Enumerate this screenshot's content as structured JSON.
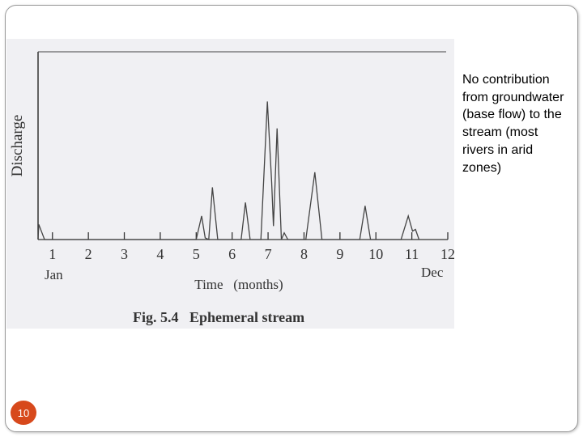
{
  "slide": {
    "side_text": "No contribution from groundwater (base flow) to the stream (most rivers in arid  zones)",
    "page_number": "10"
  },
  "chart_data": {
    "type": "line",
    "title": "Fig. 5.4   Ephemeral stream",
    "xlabel": "Time   (months)",
    "ylabel": "Discharge",
    "x_ticks": [
      "1",
      "2",
      "3",
      "4",
      "5",
      "6",
      "7",
      "8",
      "9",
      "10",
      "11",
      "12"
    ],
    "x_start_label": "Jan",
    "x_end_label": "Dec",
    "xlim": [
      0.6,
      12
    ],
    "ylim": [
      0,
      100
    ],
    "grid": false,
    "series": [
      {
        "values": [
          [
            0.6,
            0
          ],
          [
            0.62,
            9
          ],
          [
            0.78,
            0
          ],
          [
            5.0,
            0
          ],
          [
            5.15,
            14
          ],
          [
            5.25,
            1
          ],
          [
            5.35,
            0
          ],
          [
            5.45,
            31
          ],
          [
            5.6,
            0
          ],
          [
            6.25,
            0
          ],
          [
            6.37,
            22
          ],
          [
            6.5,
            0
          ],
          [
            6.8,
            0
          ],
          [
            6.98,
            82
          ],
          [
            7.1,
            34
          ],
          [
            7.15,
            8
          ],
          [
            7.2,
            36
          ],
          [
            7.25,
            66
          ],
          [
            7.37,
            0
          ],
          [
            7.45,
            4
          ],
          [
            7.55,
            0
          ],
          [
            8.05,
            0
          ],
          [
            8.3,
            40
          ],
          [
            8.5,
            0
          ],
          [
            9.55,
            0
          ],
          [
            9.7,
            20
          ],
          [
            9.85,
            0
          ],
          [
            10.7,
            0
          ],
          [
            10.9,
            14
          ],
          [
            11.02,
            5
          ],
          [
            11.1,
            6
          ],
          [
            11.2,
            0
          ]
        ]
      }
    ]
  }
}
